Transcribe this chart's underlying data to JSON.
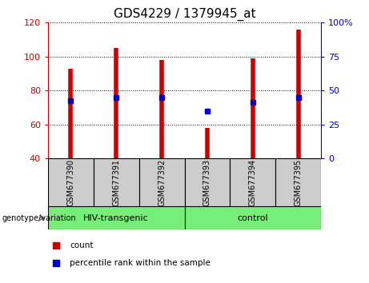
{
  "title": "GDS4229 / 1379945_at",
  "samples": [
    "GSM677390",
    "GSM677391",
    "GSM677392",
    "GSM677393",
    "GSM677394",
    "GSM677395"
  ],
  "count_values": [
    93,
    105,
    98,
    58,
    99,
    116
  ],
  "dot_y_values": [
    74,
    76,
    76,
    68,
    73,
    76
  ],
  "ylim_left": [
    40,
    120
  ],
  "ylim_right": [
    0,
    100
  ],
  "yticks_left": [
    40,
    60,
    80,
    100,
    120
  ],
  "yticks_right": [
    0,
    25,
    50,
    75,
    100
  ],
  "bar_color": "#cc0000",
  "dot_color": "#0000cc",
  "group_color": "#77ee77",
  "sample_box_color": "#cccccc",
  "legend_count_label": "count",
  "legend_percentile_label": "percentile rank within the sample",
  "genotype_label": "genotype/variation",
  "group_ranges": [
    [
      0,
      2,
      "HIV-transgenic"
    ],
    [
      3,
      5,
      "control"
    ]
  ]
}
